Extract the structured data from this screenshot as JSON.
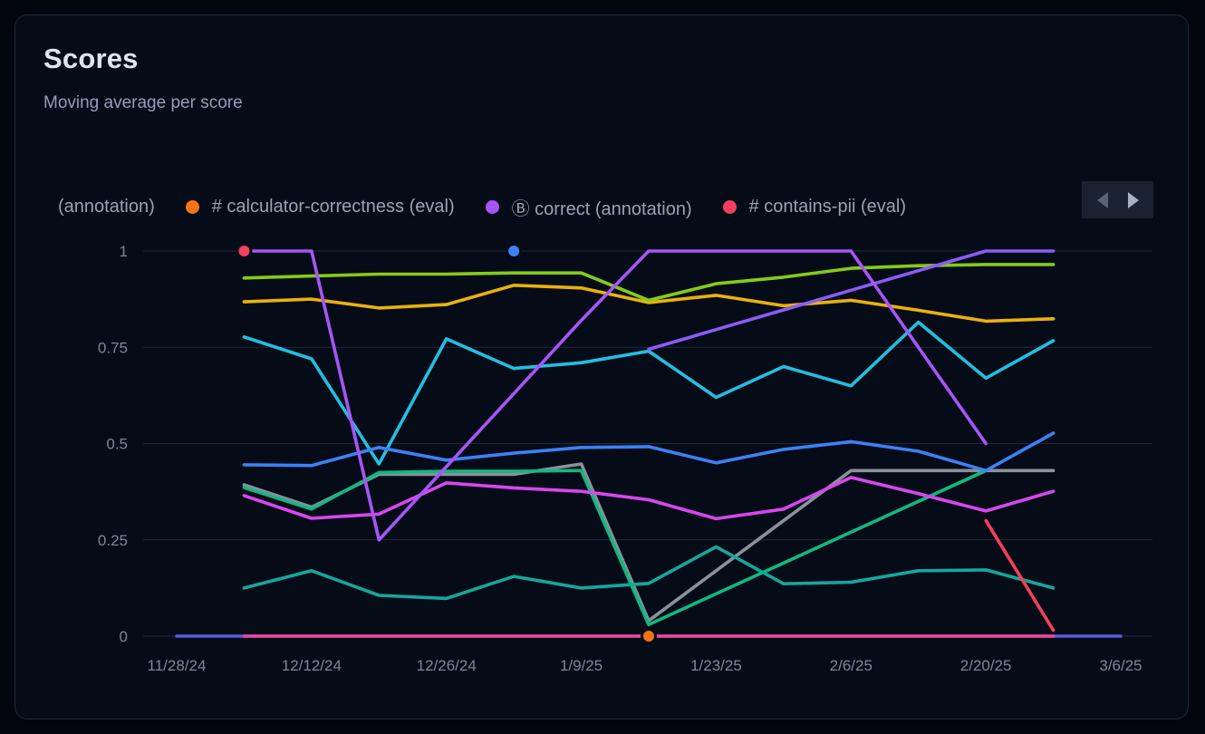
{
  "header": {
    "title": "Scores",
    "subtitle": "Moving average per score"
  },
  "legend": {
    "items": [
      {
        "label": "(annotation)",
        "color": null
      },
      {
        "label": "# calculator-correctness (eval)",
        "color": "#f97316"
      },
      {
        "label": "Ⓑ correct (annotation)",
        "color": "#a855f7"
      },
      {
        "label": "# contains-pii (eval)",
        "color": "#f43f5e"
      }
    ],
    "prev_arrow": "left",
    "next_arrow": "right"
  },
  "colors": {
    "page_bg": "#02050e",
    "card_bg": "#060b18",
    "card_border": "#1e2738",
    "grid": "#222a3a",
    "axis_text": "#7d8798",
    "title_text": "#dce6f2",
    "subtitle_text": "#93a0b4",
    "legend_text": "#9aa3b3"
  },
  "chart_data": {
    "type": "line",
    "title": "Scores",
    "subtitle": "Moving average per score",
    "ylim": [
      0,
      1
    ],
    "y_ticks": [
      {
        "value": 1,
        "label": "1"
      },
      {
        "value": 0.75,
        "label": "0.75"
      },
      {
        "value": 0.5,
        "label": "0.5"
      },
      {
        "value": 0.25,
        "label": "0.25"
      },
      {
        "value": 0,
        "label": "0"
      }
    ],
    "x_point_count": 15,
    "x_ticks": [
      {
        "index": 0,
        "label": "11/28/24"
      },
      {
        "index": 2,
        "label": "12/12/24"
      },
      {
        "index": 4,
        "label": "12/26/24"
      },
      {
        "index": 6,
        "label": "1/9/25"
      },
      {
        "index": 8,
        "label": "1/23/25"
      },
      {
        "index": 10,
        "label": "2/6/25"
      },
      {
        "index": 12,
        "label": "2/20/25"
      },
      {
        "index": 14,
        "label": "3/6/25"
      }
    ],
    "grid": "horizontal-only",
    "legend_position": "top",
    "series": [
      {
        "id": "indigo-baseline",
        "color": "#5a5adc",
        "values": [
          0,
          0,
          0,
          0,
          0,
          0,
          0,
          0,
          0,
          0,
          0,
          0,
          0,
          0,
          0
        ]
      },
      {
        "id": "pink-baseline",
        "color": "#ec4899",
        "values": [
          null,
          0,
          0,
          0,
          0,
          0,
          0,
          0,
          0,
          0,
          0,
          0,
          0,
          0,
          null
        ]
      },
      {
        "id": "gray",
        "color": "#8a909c",
        "values": [
          null,
          0.393,
          0.335,
          0.42,
          0.42,
          0.42,
          0.447,
          0.04,
          0.17,
          0.3,
          0.43,
          0.43,
          0.43,
          0.43,
          null
        ]
      },
      {
        "id": "emerald",
        "color": "#10b981",
        "values": [
          null,
          0.386,
          0.33,
          0.425,
          0.428,
          0.428,
          0.43,
          0.03,
          0.11,
          0.19,
          0.27,
          0.35,
          0.43,
          null,
          null
        ]
      },
      {
        "id": "teal",
        "color": "#14a89a",
        "values": [
          null,
          0.125,
          0.17,
          0.106,
          0.098,
          0.155,
          0.125,
          0.137,
          0.232,
          0.136,
          0.14,
          0.17,
          0.172,
          0.125,
          null
        ]
      },
      {
        "id": "fuchsia",
        "color": "#d946ef",
        "values": [
          null,
          0.365,
          0.306,
          0.317,
          0.398,
          0.385,
          0.376,
          0.354,
          0.305,
          0.33,
          0.412,
          0.37,
          0.325,
          0.376,
          null
        ]
      },
      {
        "id": "amber",
        "color": "#eab308",
        "values": [
          null,
          0.868,
          0.875,
          0.852,
          0.861,
          0.911,
          0.904,
          0.866,
          0.885,
          0.858,
          0.872,
          0.846,
          0.818,
          0.824,
          null
        ]
      },
      {
        "id": "lime",
        "color": "#84cc16",
        "values": [
          null,
          0.93,
          0.935,
          0.94,
          0.94,
          0.943,
          0.943,
          0.872,
          0.915,
          0.932,
          0.955,
          0.962,
          0.965,
          0.965,
          null
        ]
      },
      {
        "id": "cyan",
        "color": "#23bfe0",
        "values": [
          null,
          0.777,
          0.72,
          0.447,
          0.772,
          0.695,
          0.71,
          0.74,
          0.62,
          0.7,
          0.65,
          0.815,
          0.67,
          0.767,
          null
        ]
      },
      {
        "id": "blue",
        "color": "#3b82f6",
        "values": [
          null,
          0.445,
          0.443,
          0.49,
          0.457,
          0.475,
          0.49,
          0.492,
          0.45,
          0.485,
          0.505,
          0.48,
          0.43,
          0.527,
          null
        ]
      },
      {
        "id": "violet",
        "color": "#8b5cf6",
        "values": [
          null,
          null,
          null,
          null,
          null,
          null,
          null,
          0.745,
          0.796,
          0.847,
          0.898,
          0.949,
          1.0,
          1.0,
          null
        ]
      },
      {
        "id": "purple",
        "color": "#a855f7",
        "values": [
          null,
          1.0,
          1.0,
          0.25,
          0.44,
          0.63,
          0.82,
          1.0,
          1.0,
          1.0,
          1.0,
          0.75,
          0.5,
          null,
          null
        ]
      },
      {
        "id": "red",
        "color": "#f43f5e",
        "values": [
          null,
          null,
          null,
          null,
          null,
          null,
          null,
          null,
          null,
          null,
          null,
          null,
          0.3,
          0.015,
          null
        ]
      }
    ],
    "markers": [
      {
        "id": "red-dot",
        "color": "#f43f5e",
        "x_index": 1,
        "value": 1.0
      },
      {
        "id": "blue-dot",
        "color": "#3b82f6",
        "x_index": 5,
        "value": 1.0
      },
      {
        "id": "orange-dot",
        "color": "#f97316",
        "x_index": 7,
        "value": 0.0
      }
    ]
  }
}
